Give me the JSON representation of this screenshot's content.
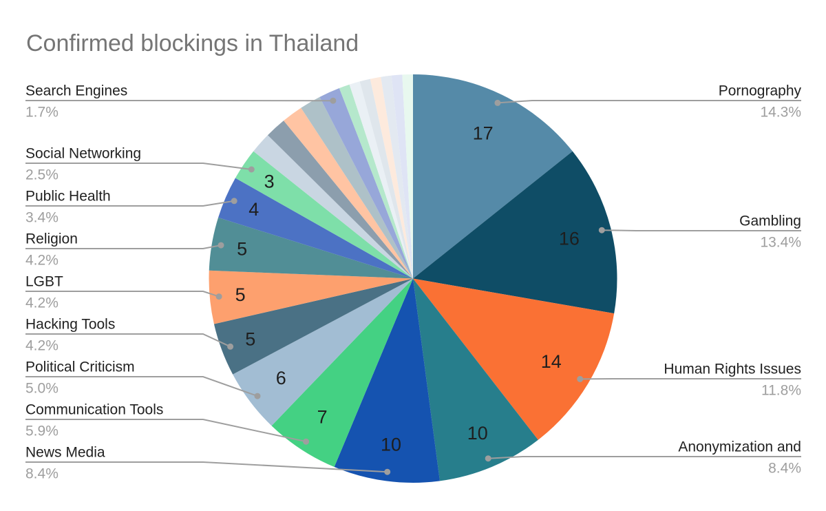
{
  "chart_data": {
    "type": "pie",
    "title": "Confirmed blockings in Thailand",
    "direction": "clockwise",
    "start_angle_deg": 0,
    "total_value": 119,
    "legend_position": "labeled-callouts",
    "slices": [
      {
        "label": "Pornography",
        "value": 17,
        "pct_label": "14.3%",
        "color": "#558AA8"
      },
      {
        "label": "Gambling",
        "value": 16,
        "pct_label": "13.4%",
        "color": "#0F4D66"
      },
      {
        "label": "Human Rights Issues",
        "value": 14,
        "pct_label": "11.8%",
        "color": "#FA7134"
      },
      {
        "label": "Anonymization and",
        "value": 10,
        "pct_label": "8.4%",
        "color": "#277E8C"
      },
      {
        "label": "News Media",
        "value": 10,
        "pct_label": "8.4%",
        "color": "#1553B0"
      },
      {
        "label": "Communication Tools",
        "value": 7,
        "pct_label": "5.9%",
        "color": "#44D183"
      },
      {
        "label": "Political Criticism",
        "value": 6,
        "pct_label": "5.0%",
        "color": "#A2BDD3"
      },
      {
        "label": "Hacking Tools",
        "value": 5,
        "pct_label": "4.2%",
        "color": "#4A7185"
      },
      {
        "label": "LGBT",
        "value": 5,
        "pct_label": "4.2%",
        "color": "#FDA06E"
      },
      {
        "label": "Religion",
        "value": 5,
        "pct_label": "4.2%",
        "color": "#518E96"
      },
      {
        "label": "Public Health",
        "value": 4,
        "pct_label": "3.4%",
        "color": "#4C72C4"
      },
      {
        "label": "Social Networking",
        "value": 3,
        "pct_label": "2.5%",
        "color": "#7EDFA9"
      },
      {
        "label": null,
        "value": 2,
        "pct_label": null,
        "color": "#C9D6E2"
      },
      {
        "label": null,
        "value": 2,
        "pct_label": null,
        "color": "#8C9EAD"
      },
      {
        "label": null,
        "value": 2,
        "pct_label": null,
        "color": "#FFC4A3"
      },
      {
        "label": null,
        "value": 2,
        "pct_label": null,
        "color": "#AEC1C8"
      },
      {
        "label": "Search Engines",
        "value": 2,
        "pct_label": "1.7%",
        "color": "#97A7D9"
      },
      {
        "label": null,
        "value": 1,
        "pct_label": null,
        "color": "#B5E8CC"
      },
      {
        "label": null,
        "value": 1,
        "pct_label": null,
        "color": "#EAF0F5"
      },
      {
        "label": null,
        "value": 1,
        "pct_label": null,
        "color": "#DFE6EC"
      },
      {
        "label": null,
        "value": 1,
        "pct_label": null,
        "color": "#FDEADD"
      },
      {
        "label": null,
        "value": 1,
        "pct_label": null,
        "color": "#E3E9F1"
      },
      {
        "label": null,
        "value": 1,
        "pct_label": null,
        "color": "#DFE4F5"
      },
      {
        "label": null,
        "value": 1,
        "pct_label": null,
        "color": "#E8F8EF"
      }
    ],
    "colors": {
      "title": "#757575",
      "category_label": "#212121",
      "percent_label": "#9E9E9E",
      "leader_line": "#9E9E9E",
      "value_label": "#1E1E1E",
      "background": "#FFFFFF"
    }
  }
}
